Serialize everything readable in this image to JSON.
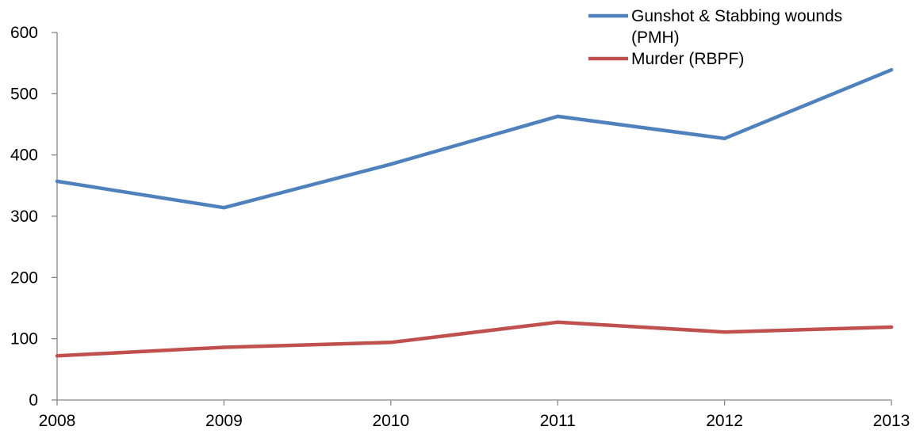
{
  "chart_data": {
    "type": "line",
    "title": "",
    "xlabel": "",
    "ylabel": "",
    "categories": [
      "2008",
      "2009",
      "2010",
      "2011",
      "2012",
      "2013"
    ],
    "ylim": [
      0,
      600
    ],
    "yticks": [
      "0",
      "100",
      "200",
      "300",
      "400",
      "500",
      "600"
    ],
    "grid": false,
    "legend_position": "top-right",
    "series": [
      {
        "name": "Gunshot & Stabbing wounds (PMH)",
        "name_lines": [
          "Gunshot & Stabbing wounds",
          "(PMH)"
        ],
        "color": "#4f81bd",
        "values": [
          357,
          314,
          385,
          463,
          427,
          539
        ]
      },
      {
        "name": "Murder (RBPF)",
        "name_lines": [
          "Murder (RBPF)"
        ],
        "color": "#c0504d",
        "values": [
          72,
          86,
          94,
          127,
          111,
          119
        ]
      }
    ]
  }
}
